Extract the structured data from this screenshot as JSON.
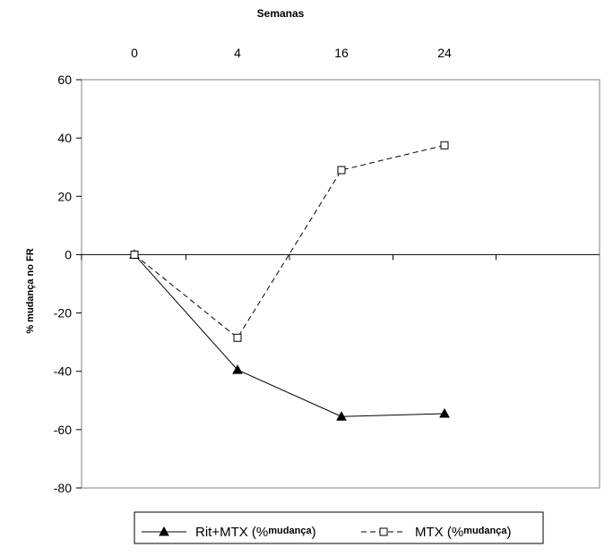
{
  "chart_data": {
    "type": "line",
    "xlabel": "Semanas",
    "ylabel": "% mudança no FR",
    "categories": [
      "0",
      "4",
      "16",
      "24"
    ],
    "ylim": [
      -80,
      60
    ],
    "yticks": [
      60,
      40,
      20,
      0,
      -20,
      -40,
      -60,
      -80
    ],
    "grid": false,
    "legend_position": "bottom",
    "series": [
      {
        "name": "Rit+MTX (%mudança)",
        "name_main": "Rit+MTX (%",
        "name_sub": "mudança",
        "name_end": ")",
        "values": [
          0,
          -39.5,
          -55.5,
          -54.5
        ],
        "color": "#000000",
        "marker": "triangle-filled",
        "line_style": "solid"
      },
      {
        "name": "MTX (%mudança)",
        "name_main": "MTX (%",
        "name_sub": "mudança",
        "name_end": ")",
        "values": [
          0,
          -28.5,
          29,
          37.5
        ],
        "color": "#000000",
        "marker": "square-open",
        "line_style": "dashed"
      }
    ]
  }
}
